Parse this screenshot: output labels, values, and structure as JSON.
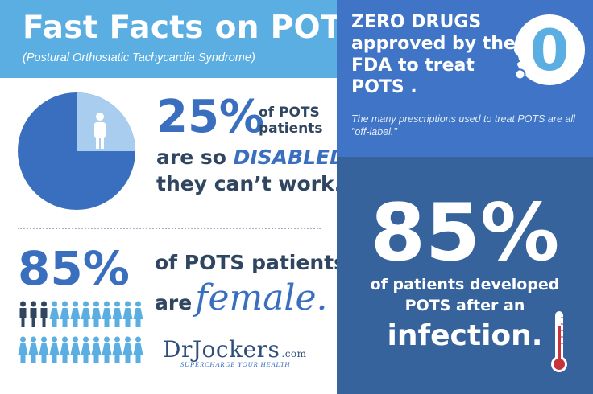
{
  "header": {
    "title": "Fast Facts on POTS",
    "subtitle": "(Postural Orthostatic Tachycardia Syndrome)"
  },
  "disabled_stat": {
    "percent": "25%",
    "suffix_line1": "of POTS",
    "suffix_line2": "patients",
    "line2_prefix": "are so ",
    "line2_highlight": "DISABLED",
    "line3": "they can’t work.",
    "pie_fraction": 0.25,
    "icon": "person-icon"
  },
  "female_stat": {
    "percent": "85%",
    "line1": "of POTS patients",
    "line2_prefix": "are",
    "line2_script": "female.",
    "people_total": 24,
    "people_highlighted": 3,
    "icon": "woman-icon"
  },
  "logo": {
    "name": "DrJockers",
    "suffix": ".com",
    "tagline": "SUPERCHARGE YOUR HEALTH"
  },
  "drugs": {
    "line1": "ZERO DRUGS",
    "line2": "approved by the",
    "line3": "FDA to treat",
    "line4": "POTS .",
    "number": "0",
    "note": "The many prescriptions used to treat POTS are all \"off-label.\"",
    "icon": "pills-icon"
  },
  "infection": {
    "percent": "85%",
    "line1": "of patients developed",
    "line2": "POTS after an",
    "line3": "infection.",
    "icon": "thermometer-icon"
  },
  "colors": {
    "light_blue": "#5aaee2",
    "mid_blue": "#3f74c6",
    "dark_blue": "#37639d",
    "text_navy": "#2f4560",
    "accent_blue": "#3a6fc0",
    "thermo_red": "#c8323a"
  }
}
